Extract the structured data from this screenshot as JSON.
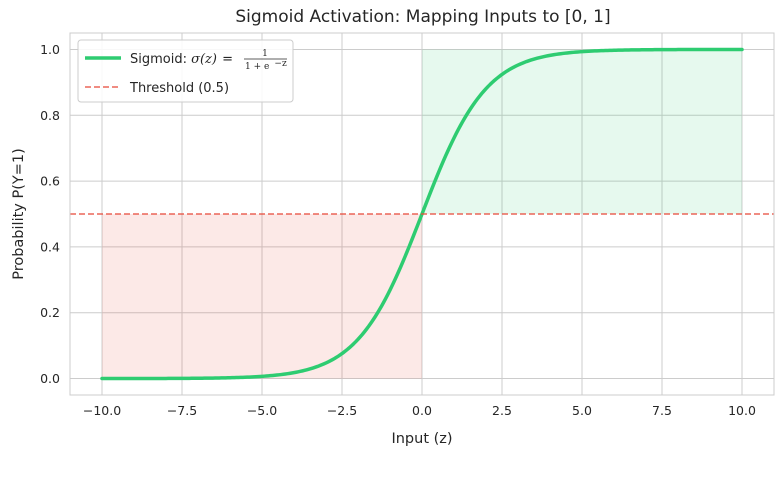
{
  "chart_data": {
    "type": "line",
    "title": "Sigmoid Activation: Mapping Inputs to [0, 1]",
    "xlabel": "Input (z)",
    "ylabel": "Probability P(Y=1)",
    "xlim": [
      -11,
      11
    ],
    "ylim": [
      -0.05,
      1.05
    ],
    "xticks": [
      -10,
      -7.5,
      -5,
      -2.5,
      0,
      2.5,
      5,
      7.5,
      10
    ],
    "xtick_labels": [
      "−10.0",
      "−7.5",
      "−5.0",
      "−2.5",
      "0.0",
      "2.5",
      "5.0",
      "7.5",
      "10.0"
    ],
    "yticks": [
      0,
      0.2,
      0.4,
      0.6,
      0.8,
      1.0
    ],
    "ytick_labels": [
      "0.0",
      "0.2",
      "0.4",
      "0.6",
      "0.8",
      "1.0"
    ],
    "grid": true,
    "legend_position": "top-left",
    "series": [
      {
        "name": "Sigmoid: σ(z) = 1/(1+e^(−z))",
        "function": "sigmoid",
        "x_range": [
          -10,
          10
        ],
        "color": "#2ecc71",
        "style": "solid"
      },
      {
        "name": "Threshold (0.5)",
        "type": "hline",
        "y": 0.5,
        "color": "#e74c3c",
        "style": "dashed"
      }
    ],
    "shaded_regions": [
      {
        "x": [
          -10,
          0
        ],
        "y": [
          0,
          0.5
        ],
        "color": "#e74c3c"
      },
      {
        "x": [
          0,
          10
        ],
        "y": [
          0.5,
          1.0
        ],
        "color": "#2ecc71"
      }
    ]
  },
  "legend": {
    "sigmoid_prefix": "Sigmoid: ",
    "sigma_expr": "σ(z)",
    "equals": " = ",
    "numerator": "1",
    "denominator_base": "1 + e",
    "denominator_exp": "−z",
    "threshold_label": "Threshold (0.5)"
  }
}
